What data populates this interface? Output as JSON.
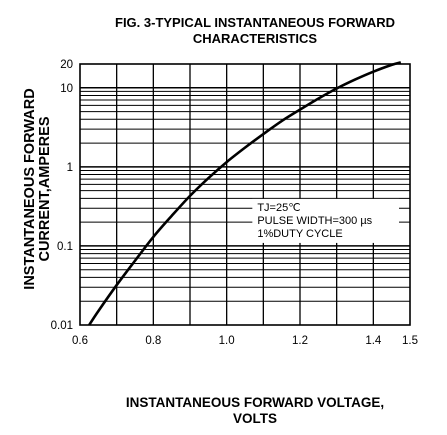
{
  "chart_data": {
    "type": "line",
    "title_line1": "FIG. 3-TYPICAL INSTANTANEOUS FORWARD",
    "title_line2": "CHARACTERISTICS",
    "xlabel_line1": "INSTANTANEOUS FORWARD VOLTAGE,",
    "xlabel_line2": "VOLTS",
    "ylabel_line1": "INSTANTANEOUS FORWARD",
    "ylabel_line2": "CURRENT,AMPERES",
    "xlim": [
      0.6,
      1.5
    ],
    "ylim": [
      0.01,
      20
    ],
    "yscale": "log",
    "grid": true,
    "x_ticks": [
      0.6,
      0.8,
      1.0,
      1.2,
      1.4,
      1.5
    ],
    "x_tick_labels": [
      "0.6",
      "0.8",
      "1.0",
      "1.2",
      "1.4",
      "1.5"
    ],
    "y_tick_values": [
      0.01,
      0.1,
      1,
      10,
      20
    ],
    "y_tick_labels": [
      "0.01",
      "0.1",
      "1",
      "10",
      "20"
    ],
    "annotation_lines": [
      "TJ=25℃",
      "PULSE WIDTH=300 µs",
      "1%DUTY CYCLE"
    ],
    "series": [
      {
        "x": [
          0.625,
          0.65,
          0.7,
          0.75,
          0.8,
          0.85,
          0.9,
          0.95,
          1.0,
          1.05,
          1.1,
          1.15,
          1.2,
          1.25,
          1.3,
          1.35,
          1.4,
          1.45,
          1.475
        ],
        "y": [
          0.01,
          0.015,
          0.032,
          0.065,
          0.13,
          0.24,
          0.43,
          0.72,
          1.15,
          1.75,
          2.6,
          3.8,
          5.3,
          7.3,
          9.8,
          12.7,
          16.0,
          19.5,
          21.0
        ]
      }
    ]
  }
}
